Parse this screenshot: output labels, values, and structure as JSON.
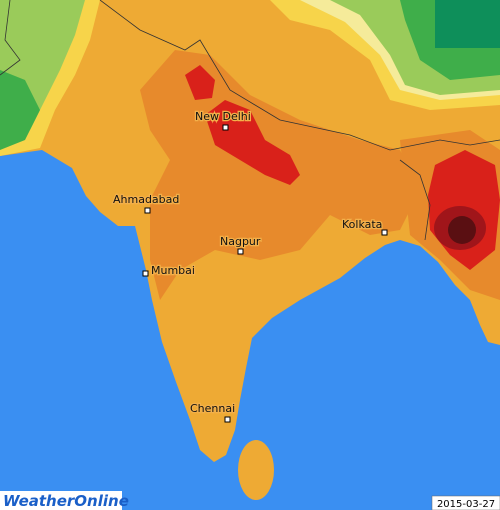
{
  "cities": [
    {
      "name": "New Delhi"
    },
    {
      "name": "Ahmadabad"
    },
    {
      "name": "Nagpur"
    },
    {
      "name": "Mumbai"
    },
    {
      "name": "Kolkata"
    },
    {
      "name": "Chennai"
    }
  ],
  "brand": "WeatherOnline",
  "date": "2015-03-27"
}
